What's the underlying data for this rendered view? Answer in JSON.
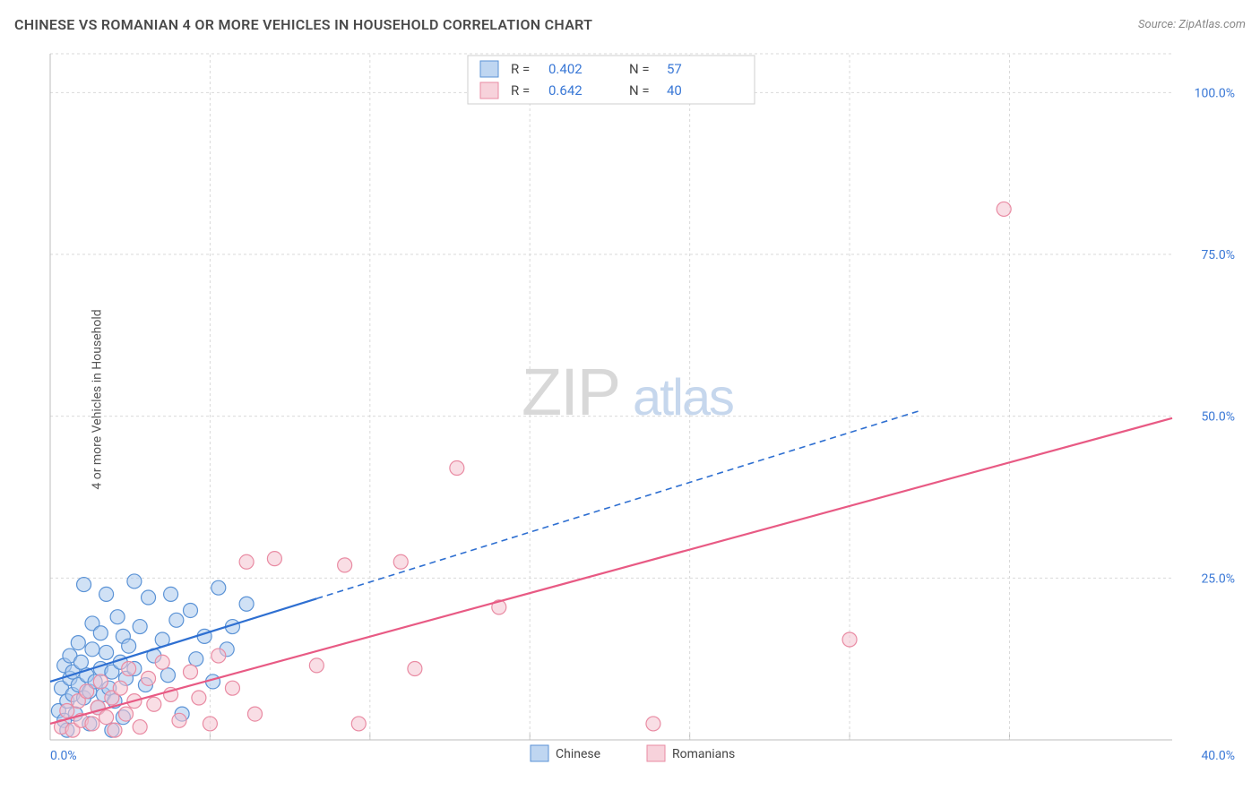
{
  "header": {
    "title": "CHINESE VS ROMANIAN 4 OR MORE VEHICLES IN HOUSEHOLD CORRELATION CHART",
    "source": "Source: ZipAtlas.com"
  },
  "chart": {
    "type": "scatter",
    "ylabel": "4 or more Vehicles in Household",
    "xlim": [
      0,
      40
    ],
    "ylim": [
      0,
      106
    ],
    "x_ticks": [
      {
        "v": 0,
        "label": "0.0%"
      },
      {
        "v": 40,
        "label": "40.0%"
      }
    ],
    "y_ticks": [
      {
        "v": 25,
        "label": "25.0%"
      },
      {
        "v": 50,
        "label": "50.0%"
      },
      {
        "v": 75,
        "label": "75.0%"
      },
      {
        "v": 100,
        "label": "100.0%"
      }
    ],
    "x_grid_minor": [
      5.7,
      11.4,
      17.1,
      22.8,
      28.5,
      34.2
    ],
    "background_color": "#ffffff",
    "grid_color": "#d9d9d9",
    "axis_color": "#bcbcbc",
    "marker_radius": 8,
    "marker_stroke_width": 1.2,
    "series": [
      {
        "name": "Chinese",
        "fill": "#a9c8ec",
        "fill_opacity": 0.55,
        "stroke": "#5b93d6",
        "points": [
          [
            0.3,
            4.5
          ],
          [
            0.4,
            8.0
          ],
          [
            0.5,
            11.5
          ],
          [
            0.5,
            3.0
          ],
          [
            0.6,
            6.0
          ],
          [
            0.7,
            13.0
          ],
          [
            0.7,
            9.5
          ],
          [
            0.8,
            7.0
          ],
          [
            0.8,
            10.5
          ],
          [
            0.9,
            4.0
          ],
          [
            1.0,
            15.0
          ],
          [
            1.0,
            8.5
          ],
          [
            1.1,
            12.0
          ],
          [
            1.2,
            6.5
          ],
          [
            1.2,
            24.0
          ],
          [
            1.3,
            10.0
          ],
          [
            1.4,
            7.5
          ],
          [
            1.5,
            14.0
          ],
          [
            1.5,
            18.0
          ],
          [
            1.6,
            9.0
          ],
          [
            1.7,
            5.0
          ],
          [
            1.8,
            11.0
          ],
          [
            1.8,
            16.5
          ],
          [
            1.9,
            7.0
          ],
          [
            2.0,
            22.5
          ],
          [
            2.0,
            13.5
          ],
          [
            2.1,
            8.0
          ],
          [
            2.2,
            10.5
          ],
          [
            2.3,
            6.0
          ],
          [
            2.4,
            19.0
          ],
          [
            2.5,
            12.0
          ],
          [
            2.6,
            16.0
          ],
          [
            2.7,
            9.5
          ],
          [
            2.8,
            14.5
          ],
          [
            3.0,
            11.0
          ],
          [
            3.2,
            17.5
          ],
          [
            3.4,
            8.5
          ],
          [
            3.5,
            22.0
          ],
          [
            3.7,
            13.0
          ],
          [
            4.0,
            15.5
          ],
          [
            4.2,
            10.0
          ],
          [
            4.5,
            18.5
          ],
          [
            4.7,
            4.0
          ],
          [
            5.0,
            20.0
          ],
          [
            5.2,
            12.5
          ],
          [
            5.5,
            16.0
          ],
          [
            5.8,
            9.0
          ],
          [
            6.0,
            23.5
          ],
          [
            6.3,
            14.0
          ],
          [
            3.0,
            24.5
          ],
          [
            2.2,
            1.5
          ],
          [
            7.0,
            21.0
          ],
          [
            6.5,
            17.5
          ],
          [
            4.3,
            22.5
          ],
          [
            1.4,
            2.5
          ],
          [
            0.6,
            1.5
          ],
          [
            2.6,
            3.5
          ]
        ],
        "regression": {
          "slope": 1.35,
          "intercept": 9.0,
          "solid_xmax": 9.5,
          "dash_xmax": 31.0
        }
      },
      {
        "name": "Romanians",
        "fill": "#f4c3cf",
        "fill_opacity": 0.55,
        "stroke": "#e98ba3",
        "points": [
          [
            0.4,
            2.0
          ],
          [
            0.6,
            4.5
          ],
          [
            0.8,
            1.5
          ],
          [
            1.0,
            6.0
          ],
          [
            1.1,
            3.0
          ],
          [
            1.3,
            7.5
          ],
          [
            1.5,
            2.5
          ],
          [
            1.7,
            5.0
          ],
          [
            1.8,
            9.0
          ],
          [
            2.0,
            3.5
          ],
          [
            2.2,
            6.5
          ],
          [
            2.3,
            1.5
          ],
          [
            2.5,
            8.0
          ],
          [
            2.7,
            4.0
          ],
          [
            2.8,
            11.0
          ],
          [
            3.0,
            6.0
          ],
          [
            3.2,
            2.0
          ],
          [
            3.5,
            9.5
          ],
          [
            3.7,
            5.5
          ],
          [
            4.0,
            12.0
          ],
          [
            4.3,
            7.0
          ],
          [
            4.6,
            3.0
          ],
          [
            5.0,
            10.5
          ],
          [
            5.3,
            6.5
          ],
          [
            5.7,
            2.5
          ],
          [
            6.0,
            13.0
          ],
          [
            6.5,
            8.0
          ],
          [
            7.0,
            27.5
          ],
          [
            7.3,
            4.0
          ],
          [
            8.0,
            28.0
          ],
          [
            9.5,
            11.5
          ],
          [
            10.5,
            27.0
          ],
          [
            11.0,
            2.5
          ],
          [
            12.5,
            27.5
          ],
          [
            13.0,
            11.0
          ],
          [
            14.5,
            42.0
          ],
          [
            16.0,
            20.5
          ],
          [
            21.5,
            2.5
          ],
          [
            28.5,
            15.5
          ],
          [
            34.0,
            82.0
          ]
        ],
        "regression": {
          "slope": 1.18,
          "intercept": 2.5,
          "solid_xmax": 40.0,
          "dash_xmax": 40.0
        }
      }
    ],
    "legend_top": {
      "entries": [
        {
          "r": "0.402",
          "n": "57"
        },
        {
          "r": "0.642",
          "n": "40"
        }
      ],
      "r_label": "R =",
      "n_label": "N ="
    },
    "legend_bottom": {
      "labels": [
        "Chinese",
        "Romanians"
      ]
    },
    "watermark": {
      "text_a": "ZIP",
      "text_b": "atlas",
      "fontsize": 74,
      "color_a": "#d8d8d8",
      "color_b": "#c6d7ed"
    }
  }
}
